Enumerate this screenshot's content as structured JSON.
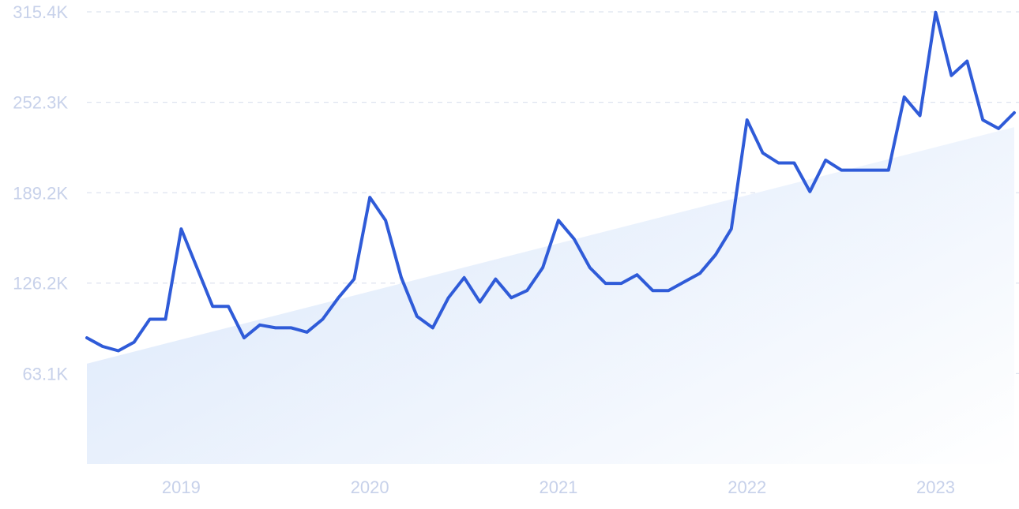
{
  "colors": {
    "line": "#2f5bd8",
    "grid": "#dde3ef",
    "tick_text": "#c7d1ea",
    "trend_fill_start": "#dde9fb",
    "trend_fill_end": "#ffffff"
  },
  "chart_data": {
    "type": "line",
    "title": "",
    "xlabel": "",
    "ylabel": "",
    "grid": "horizontal-dashed",
    "legend": "none",
    "ylim": [
      0,
      315400
    ],
    "xlim": [
      "2018-07",
      "2023-06"
    ],
    "y_ticks": [
      {
        "value": 315400,
        "label": "315.4K"
      },
      {
        "value": 252300,
        "label": "252.3K"
      },
      {
        "value": 189200,
        "label": "189.2K"
      },
      {
        "value": 126200,
        "label": "126.2K"
      },
      {
        "value": 63100,
        "label": "63.1K"
      }
    ],
    "x_ticks": [
      {
        "value": "2019-01",
        "label": "2019"
      },
      {
        "value": "2020-01",
        "label": "2020"
      },
      {
        "value": "2021-01",
        "label": "2021"
      },
      {
        "value": "2022-01",
        "label": "2022"
      },
      {
        "value": "2023-01",
        "label": "2023"
      }
    ],
    "trend": {
      "start": {
        "x": "2018-07",
        "y": 70000
      },
      "end": {
        "x": "2023-06",
        "y": 235000
      }
    },
    "series": [
      {
        "x": [
          "2018-07",
          "2018-08",
          "2018-09",
          "2018-10",
          "2018-11",
          "2018-12",
          "2019-01",
          "2019-02",
          "2019-03",
          "2019-04",
          "2019-05",
          "2019-06",
          "2019-07",
          "2019-08",
          "2019-09",
          "2019-10",
          "2019-11",
          "2019-12",
          "2020-01",
          "2020-02",
          "2020-03",
          "2020-04",
          "2020-05",
          "2020-06",
          "2020-07",
          "2020-08",
          "2020-09",
          "2020-10",
          "2020-11",
          "2020-12",
          "2021-01",
          "2021-02",
          "2021-03",
          "2021-04",
          "2021-05",
          "2021-06",
          "2021-07",
          "2021-08",
          "2021-09",
          "2021-10",
          "2021-11",
          "2021-12",
          "2022-01",
          "2022-02",
          "2022-03",
          "2022-04",
          "2022-05",
          "2022-06",
          "2022-07",
          "2022-08",
          "2022-09",
          "2022-10",
          "2022-11",
          "2022-12",
          "2023-01",
          "2023-02",
          "2023-03",
          "2023-04",
          "2023-05",
          "2023-06"
        ],
        "values": [
          88000,
          82000,
          79000,
          85000,
          101000,
          101000,
          164000,
          137000,
          110000,
          110000,
          88000,
          97000,
          95000,
          95000,
          92000,
          101000,
          116000,
          129000,
          186000,
          170000,
          130000,
          103000,
          95000,
          116000,
          130000,
          113000,
          129000,
          116000,
          121000,
          137000,
          170000,
          157000,
          137000,
          126000,
          126000,
          132000,
          121000,
          121000,
          127000,
          133000,
          146000,
          164000,
          240000,
          217000,
          210000,
          210000,
          190000,
          212000,
          205000,
          205000,
          205000,
          205000,
          256000,
          243000,
          315000,
          271000,
          281000,
          240000,
          234000,
          245000
        ]
      }
    ]
  }
}
